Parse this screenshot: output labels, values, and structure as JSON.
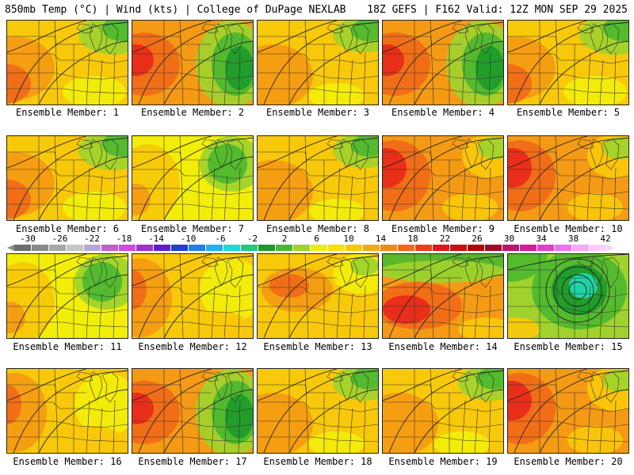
{
  "header": {
    "title": "850mb Temp (°C) | Wind (kts) | College of DuPage NEXLAB",
    "run_info": "18Z GEFS | F162 Valid: 12Z MON SEP 29 2025"
  },
  "colors": {
    "green_dark": "#1e9a2a",
    "green": "#4cb82e",
    "yellow_green": "#9fd22c",
    "yellow": "#f2ee0a",
    "gold": "#f8c80a",
    "orange": "#f59a14",
    "orange_red": "#f06a18",
    "red": "#e8281a",
    "teal": "#20d8b0",
    "contour": "#333333"
  },
  "members": [
    {
      "label": "Ensemble Member: 1",
      "scheme": "warm_west_green_ne"
    },
    {
      "label": "Ensemble Member: 2",
      "scheme": "hot_west_green_east"
    },
    {
      "label": "Ensemble Member: 3",
      "scheme": "warm_green_ne"
    },
    {
      "label": "Ensemble Member: 4",
      "scheme": "hot_west_green_east"
    },
    {
      "label": "Ensemble Member: 5",
      "scheme": "warm_west_green_ne"
    },
    {
      "label": "Ensemble Member: 6",
      "scheme": "warm_west_green_ne"
    },
    {
      "label": "Ensemble Member: 7",
      "scheme": "yellow_green_ne"
    },
    {
      "label": "Ensemble Member: 8",
      "scheme": "warm_green_ne"
    },
    {
      "label": "Ensemble Member: 9",
      "scheme": "hot_west"
    },
    {
      "label": "Ensemble Member: 10",
      "scheme": "hot_west"
    },
    {
      "label": "Ensemble Member: 11",
      "scheme": "yellow_green_ne"
    },
    {
      "label": "Ensemble Member: 12",
      "scheme": "warm_west_yellow_east"
    },
    {
      "label": "Ensemble Member: 13",
      "scheme": "warm_center"
    },
    {
      "label": "Ensemble Member: 14",
      "scheme": "hot_center_green_north"
    },
    {
      "label": "Ensemble Member: 15",
      "scheme": "low_center"
    },
    {
      "label": "Ensemble Member: 16",
      "scheme": "warm_west_yellow_east"
    },
    {
      "label": "Ensemble Member: 17",
      "scheme": "hot_west_green_east"
    },
    {
      "label": "Ensemble Member: 18",
      "scheme": "warm_green_ne"
    },
    {
      "label": "Ensemble Member: 19",
      "scheme": "warm_green_ne"
    },
    {
      "label": "Ensemble Member: 20",
      "scheme": "hot_west"
    }
  ],
  "colorbar": {
    "ticks": [
      "-30",
      "-26",
      "-22",
      "-18",
      "-14",
      "-10",
      "-6",
      "-2",
      "2",
      "6",
      "10",
      "14",
      "18",
      "22",
      "26",
      "30",
      "34",
      "38",
      "42"
    ],
    "colors": [
      "#6e6e6e",
      "#8a8a8a",
      "#a8a8a8",
      "#c6c6c6",
      "#b8a8d8",
      "#c060c8",
      "#d048e0",
      "#a030d0",
      "#6020c8",
      "#2040d0",
      "#2080e8",
      "#20b0f0",
      "#20d8d8",
      "#20c880",
      "#1e9a2a",
      "#4cb82e",
      "#9fd22c",
      "#e8ee10",
      "#f8e008",
      "#f8c80a",
      "#f5a814",
      "#f08a18",
      "#f06a18",
      "#e8401a",
      "#e01818",
      "#c81010",
      "#b00808",
      "#a00828",
      "#b81870",
      "#d02098",
      "#e040c8",
      "#f070f0",
      "#f8a8f8",
      "#ffcdfc"
    ]
  }
}
